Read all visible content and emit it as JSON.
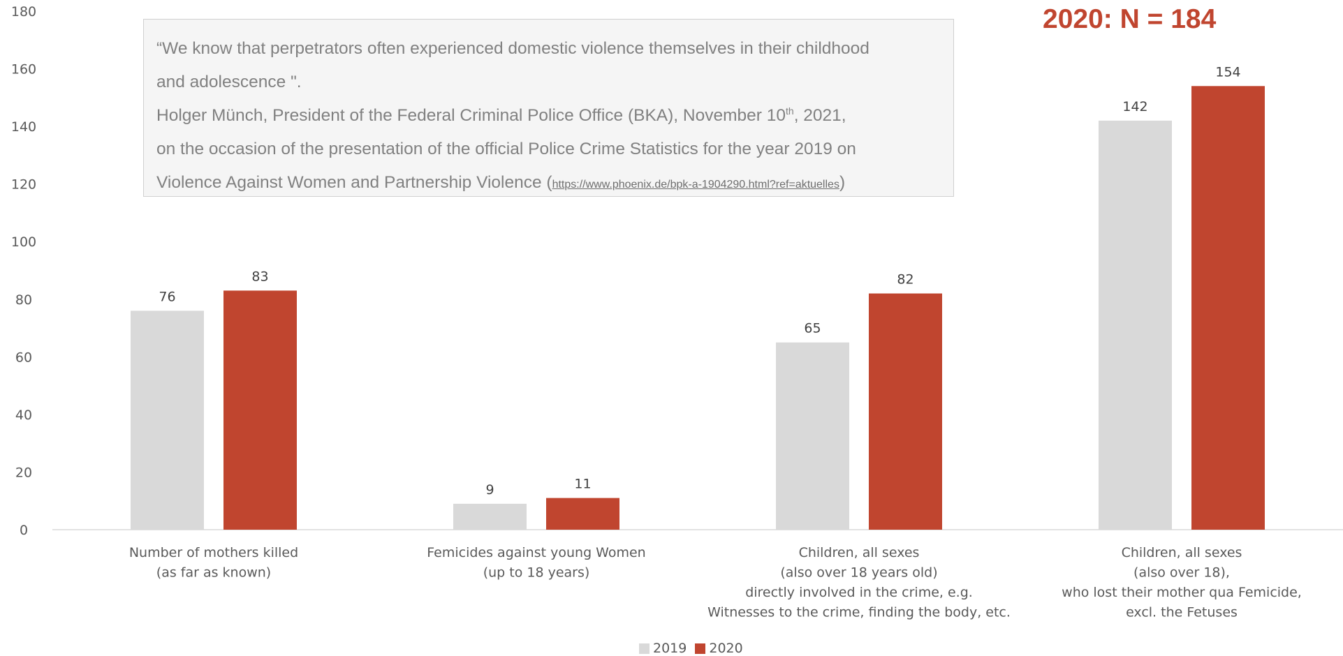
{
  "chart_data": {
    "type": "bar",
    "categories": [
      [
        "Number of mothers killed",
        "(as far as known)"
      ],
      [
        "Femicides against young Women",
        "(up to 18 years)"
      ],
      [
        "Children, all sexes",
        "(also over 18 years old)",
        "directly involved in the crime, e.g.",
        "Witnesses to the crime, finding the body, etc."
      ],
      [
        "Children, all sexes",
        "(also over 18),",
        "who lost their mother qua Femicide,",
        "excl. the Fetuses"
      ]
    ],
    "series": [
      {
        "name": "2019",
        "color": "#d9d9d9",
        "values": [
          76,
          9,
          65,
          142
        ]
      },
      {
        "name": "2020",
        "color": "#c0452f",
        "values": [
          83,
          11,
          82,
          154
        ]
      }
    ],
    "ylim": [
      0,
      180
    ],
    "yticks": [
      0,
      20,
      40,
      60,
      80,
      100,
      120,
      140,
      160,
      180
    ],
    "grid": false,
    "legend": "bottom-center"
  },
  "annotations": {
    "n_label": "2020: N = 184",
    "quote": {
      "line1": "“We know that perpetrators often experienced domestic violence themselves in their childhood",
      "line2": "and adolescence \".",
      "line3_a": "Holger Münch, President of the Federal Criminal Police Office (BKA), November 10",
      "line3_sup": "th",
      "line3_b": ", 2021,",
      "line4": "on the occasion of the presentation of the official Police Crime Statistics for the year 2019 on",
      "line5_a": "Violence Against Women and Partnership Violence (",
      "line5_url": "https://www.phoenix.de/bpk-a-1904290.html?ref=aktuelles",
      "line5_b": ")"
    }
  }
}
